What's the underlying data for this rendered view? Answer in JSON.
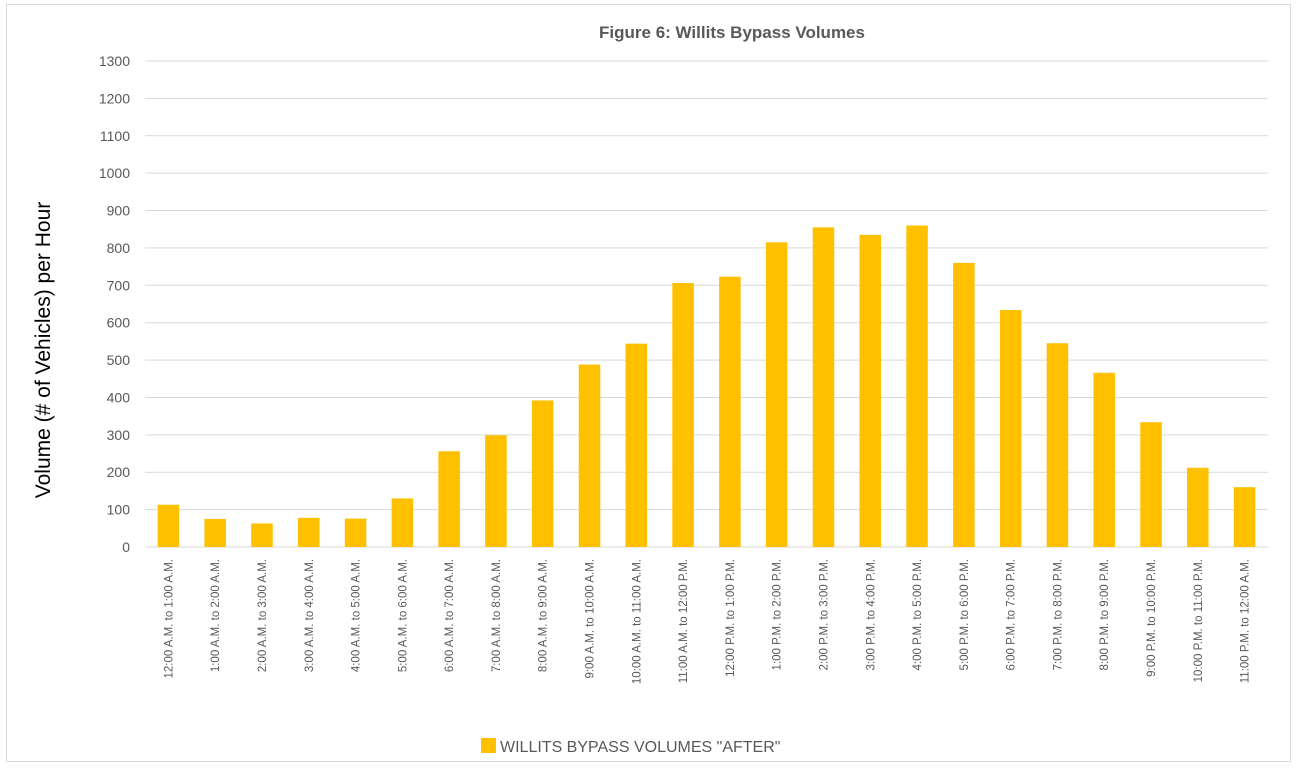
{
  "chart_data": {
    "type": "bar",
    "title": "Figure 6: Willits Bypass Volumes",
    "xlabel": "",
    "ylabel": "Volume (# of Vehicles) per Hour",
    "ylim": [
      0,
      1300
    ],
    "yticks": [
      0,
      100,
      200,
      300,
      400,
      500,
      600,
      700,
      800,
      900,
      1000,
      1100,
      1200,
      1300
    ],
    "grid": true,
    "legend_position": "bottom",
    "categories": [
      "12:00 A.M. to 1:00 A.M.",
      "1:00 A.M. to 2:00 A.M.",
      "2:00 A.M. to 3:00 A.M.",
      "3:00 A.M. to 4:00 A.M.",
      "4:00 A.M. to 5:00 A.M.",
      "5:00 A.M. to 6:00 A.M.",
      "6:00 A.M. to 7:00 A.M.",
      "7:00 A.M. to 8:00 A.M.",
      "8:00 A.M. to 9:00 A.M.",
      "9:00 A.M. to 10:00 A.M.",
      "10:00 A.M. to 11:00 A.M.",
      "11:00 A.M. to 12:00 P.M.",
      "12:00 P.M. to 1:00 P.M.",
      "1:00 P.M. to 2:00 P.M.",
      "2:00 P.M. to 3:00 P.M.",
      "3:00 P.M. to 4:00 P.M.",
      "4:00 P.M. to 5:00 P.M.",
      "5:00 P.M. to 6:00 P.M.",
      "6:00 P.M. to 7:00 P.M.",
      "7:00 P.M. to 8:00 P.M.",
      "8:00 P.M. to 9:00 P.M.",
      "9:00 P.M. to 10:00 P.M.",
      "10:00 P.M. to 11:00 P.M.",
      "11:00 P.M. to 12:00 A.M."
    ],
    "series": [
      {
        "name": "WILLITS BYPASS VOLUMES \"AFTER\"",
        "color": "#FFC000",
        "values": [
          113,
          75,
          63,
          78,
          76,
          130,
          256,
          299,
          392,
          488,
          544,
          706,
          723,
          815,
          855,
          835,
          860,
          760,
          634,
          545,
          466,
          334,
          212,
          160
        ]
      }
    ]
  }
}
